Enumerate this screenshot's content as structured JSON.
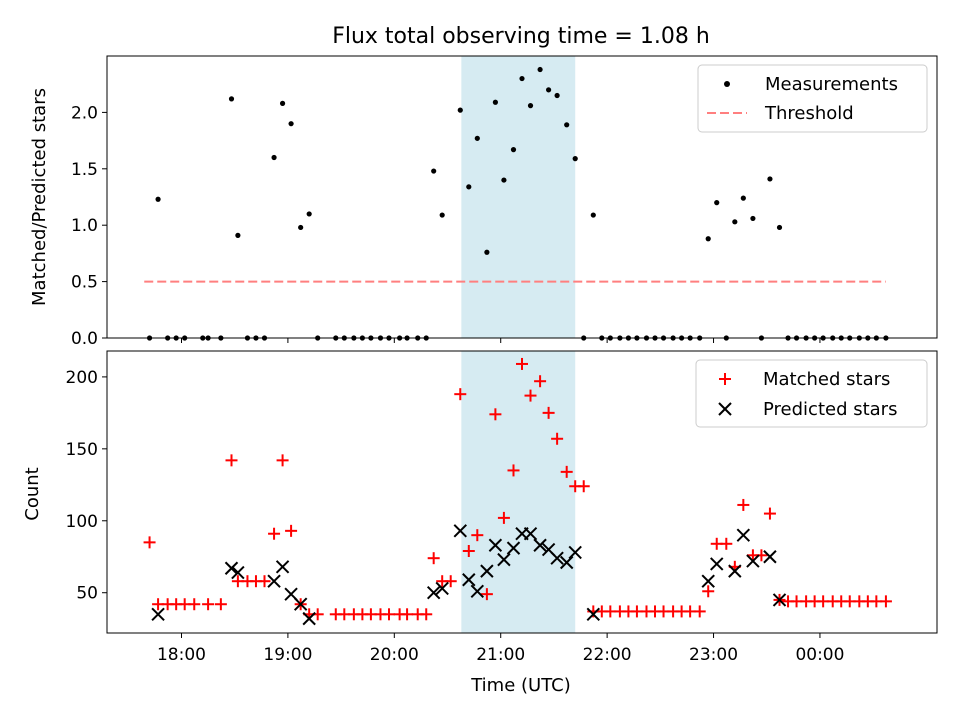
{
  "title": "Flux total observing time = 1.08 h",
  "chart_data": [
    {
      "type": "scatter",
      "panel": "top",
      "ylabel": "Matched/Predicted stars",
      "ylim": [
        0,
        2.5
      ],
      "yticks": [
        0.0,
        0.5,
        1.0,
        1.5,
        2.0
      ],
      "yticklabels": [
        "0.0",
        "0.5",
        "1.0",
        "1.5",
        "2.0"
      ],
      "xlim_hours": [
        17.3,
        25.1
      ],
      "shaded_interval_hours": [
        20.63,
        21.7
      ],
      "shaded_color": "#add8e6",
      "legend": {
        "position": "top-right",
        "entries": [
          "Measurements",
          "Threshold"
        ]
      },
      "series": [
        {
          "name": "Measurements",
          "marker": "dot",
          "color": "#000000",
          "points": [
            [
              17.7,
              0
            ],
            [
              17.78,
              1.23
            ],
            [
              17.87,
              0
            ],
            [
              17.95,
              0
            ],
            [
              18.03,
              0
            ],
            [
              18.2,
              0
            ],
            [
              18.25,
              0
            ],
            [
              18.37,
              0
            ],
            [
              18.47,
              2.12
            ],
            [
              18.53,
              0.91
            ],
            [
              18.62,
              0
            ],
            [
              18.7,
              0
            ],
            [
              18.78,
              0
            ],
            [
              18.87,
              1.6
            ],
            [
              18.95,
              2.08
            ],
            [
              19.03,
              1.9
            ],
            [
              19.12,
              0.98
            ],
            [
              19.2,
              1.1
            ],
            [
              19.28,
              0
            ],
            [
              19.45,
              0
            ],
            [
              19.53,
              0
            ],
            [
              19.62,
              0
            ],
            [
              19.7,
              0
            ],
            [
              19.78,
              0
            ],
            [
              19.87,
              0
            ],
            [
              19.95,
              0
            ],
            [
              20.05,
              0
            ],
            [
              20.12,
              0
            ],
            [
              20.22,
              0
            ],
            [
              20.3,
              0
            ],
            [
              20.37,
              1.48
            ],
            [
              20.45,
              1.09
            ],
            [
              20.62,
              2.02
            ],
            [
              20.7,
              1.34
            ],
            [
              20.78,
              1.77
            ],
            [
              20.87,
              0.76
            ],
            [
              20.95,
              2.09
            ],
            [
              21.03,
              1.4
            ],
            [
              21.12,
              1.67
            ],
            [
              21.2,
              2.3
            ],
            [
              21.28,
              2.06
            ],
            [
              21.37,
              2.38
            ],
            [
              21.45,
              2.2
            ],
            [
              21.53,
              2.15
            ],
            [
              21.62,
              1.89
            ],
            [
              21.7,
              1.59
            ],
            [
              21.78,
              0
            ],
            [
              21.87,
              1.09
            ],
            [
              21.95,
              0
            ],
            [
              22.03,
              0
            ],
            [
              22.12,
              0
            ],
            [
              22.2,
              0
            ],
            [
              22.28,
              0
            ],
            [
              22.37,
              0
            ],
            [
              22.45,
              0
            ],
            [
              22.53,
              0
            ],
            [
              22.62,
              0
            ],
            [
              22.7,
              0
            ],
            [
              22.78,
              0
            ],
            [
              22.87,
              0
            ],
            [
              22.95,
              0.88
            ],
            [
              23.03,
              1.2
            ],
            [
              23.12,
              0
            ],
            [
              23.2,
              1.03
            ],
            [
              23.28,
              1.24
            ],
            [
              23.37,
              1.06
            ],
            [
              23.45,
              0
            ],
            [
              23.53,
              1.41
            ],
            [
              23.62,
              0.98
            ],
            [
              23.7,
              0
            ],
            [
              23.78,
              0
            ],
            [
              23.87,
              0
            ],
            [
              23.95,
              0
            ],
            [
              24.03,
              0
            ],
            [
              24.12,
              0
            ],
            [
              24.2,
              0
            ],
            [
              24.28,
              0
            ],
            [
              24.37,
              0
            ],
            [
              24.45,
              0
            ],
            [
              24.53,
              0
            ],
            [
              24.62,
              0
            ]
          ]
        },
        {
          "name": "Threshold",
          "style": "dashed-line",
          "color": "#ff7f7f",
          "x_start_hours": 17.65,
          "x_end_hours": 24.62,
          "value": 0.5
        }
      ]
    },
    {
      "type": "scatter",
      "panel": "bottom",
      "xlabel": "Time (UTC)",
      "ylabel": "Count",
      "ylim": [
        22,
        218
      ],
      "yticks": [
        50,
        100,
        150,
        200
      ],
      "yticklabels": [
        "50",
        "100",
        "150",
        "200"
      ],
      "xticks_hours": [
        18,
        19,
        20,
        21,
        22,
        23,
        24
      ],
      "xticklabels": [
        "18:00",
        "19:00",
        "20:00",
        "21:00",
        "22:00",
        "23:00",
        "00:00"
      ],
      "xlim_hours": [
        17.3,
        25.1
      ],
      "shaded_interval_hours": [
        20.63,
        21.7
      ],
      "legend": {
        "position": "top-right",
        "entries": [
          "Matched stars",
          "Predicted stars"
        ]
      },
      "series": [
        {
          "name": "Matched stars",
          "marker": "plus",
          "color": "#ff0000",
          "points": [
            [
              17.7,
              85
            ],
            [
              17.78,
              42
            ],
            [
              17.87,
              42
            ],
            [
              17.95,
              42
            ],
            [
              18.03,
              42
            ],
            [
              18.12,
              42
            ],
            [
              18.25,
              42
            ],
            [
              18.37,
              42
            ],
            [
              18.47,
              142
            ],
            [
              18.53,
              58
            ],
            [
              18.62,
              58
            ],
            [
              18.7,
              58
            ],
            [
              18.78,
              58
            ],
            [
              18.87,
              91
            ],
            [
              18.95,
              142
            ],
            [
              19.03,
              93
            ],
            [
              19.12,
              42
            ],
            [
              19.2,
              35
            ],
            [
              19.28,
              35
            ],
            [
              19.45,
              35
            ],
            [
              19.53,
              35
            ],
            [
              19.62,
              35
            ],
            [
              19.7,
              35
            ],
            [
              19.78,
              35
            ],
            [
              19.87,
              35
            ],
            [
              19.95,
              35
            ],
            [
              20.05,
              35
            ],
            [
              20.12,
              35
            ],
            [
              20.22,
              35
            ],
            [
              20.3,
              35
            ],
            [
              20.37,
              74
            ],
            [
              20.45,
              58
            ],
            [
              20.53,
              58
            ],
            [
              20.62,
              188
            ],
            [
              20.7,
              79
            ],
            [
              20.78,
              90
            ],
            [
              20.87,
              49
            ],
            [
              20.95,
              174
            ],
            [
              21.03,
              102
            ],
            [
              21.12,
              135
            ],
            [
              21.2,
              209
            ],
            [
              21.28,
              187
            ],
            [
              21.37,
              197
            ],
            [
              21.45,
              175
            ],
            [
              21.53,
              157
            ],
            [
              21.62,
              134
            ],
            [
              21.7,
              124
            ],
            [
              21.78,
              124
            ],
            [
              21.87,
              37
            ],
            [
              21.95,
              37
            ],
            [
              22.03,
              37
            ],
            [
              22.12,
              37
            ],
            [
              22.2,
              37
            ],
            [
              22.28,
              37
            ],
            [
              22.37,
              37
            ],
            [
              22.45,
              37
            ],
            [
              22.53,
              37
            ],
            [
              22.62,
              37
            ],
            [
              22.7,
              37
            ],
            [
              22.78,
              37
            ],
            [
              22.87,
              37
            ],
            [
              22.95,
              51
            ],
            [
              23.03,
              84
            ],
            [
              23.12,
              84
            ],
            [
              23.2,
              68
            ],
            [
              23.28,
              111
            ],
            [
              23.37,
              76
            ],
            [
              23.45,
              76
            ],
            [
              23.53,
              105
            ],
            [
              23.62,
              45
            ],
            [
              23.7,
              44
            ],
            [
              23.78,
              44
            ],
            [
              23.87,
              44
            ],
            [
              23.95,
              44
            ],
            [
              24.03,
              44
            ],
            [
              24.12,
              44
            ],
            [
              24.2,
              44
            ],
            [
              24.28,
              44
            ],
            [
              24.37,
              44
            ],
            [
              24.45,
              44
            ],
            [
              24.53,
              44
            ],
            [
              24.62,
              44
            ]
          ]
        },
        {
          "name": "Predicted stars",
          "marker": "x",
          "color": "#000000",
          "points": [
            [
              17.78,
              35
            ],
            [
              18.47,
              67
            ],
            [
              18.53,
              64
            ],
            [
              18.87,
              58
            ],
            [
              18.95,
              68
            ],
            [
              19.03,
              49
            ],
            [
              19.12,
              42
            ],
            [
              19.2,
              32
            ],
            [
              20.37,
              50
            ],
            [
              20.45,
              53
            ],
            [
              20.62,
              93
            ],
            [
              20.7,
              59
            ],
            [
              20.78,
              51
            ],
            [
              20.87,
              65
            ],
            [
              20.95,
              83
            ],
            [
              21.03,
              73
            ],
            [
              21.12,
              81
            ],
            [
              21.2,
              91
            ],
            [
              21.28,
              91
            ],
            [
              21.37,
              83
            ],
            [
              21.45,
              80
            ],
            [
              21.53,
              74
            ],
            [
              21.62,
              71
            ],
            [
              21.7,
              78
            ],
            [
              21.87,
              35
            ],
            [
              22.95,
              58
            ],
            [
              23.03,
              70
            ],
            [
              23.2,
              65
            ],
            [
              23.28,
              90
            ],
            [
              23.37,
              72
            ],
            [
              23.53,
              75
            ],
            [
              23.62,
              45
            ]
          ]
        }
      ]
    }
  ]
}
